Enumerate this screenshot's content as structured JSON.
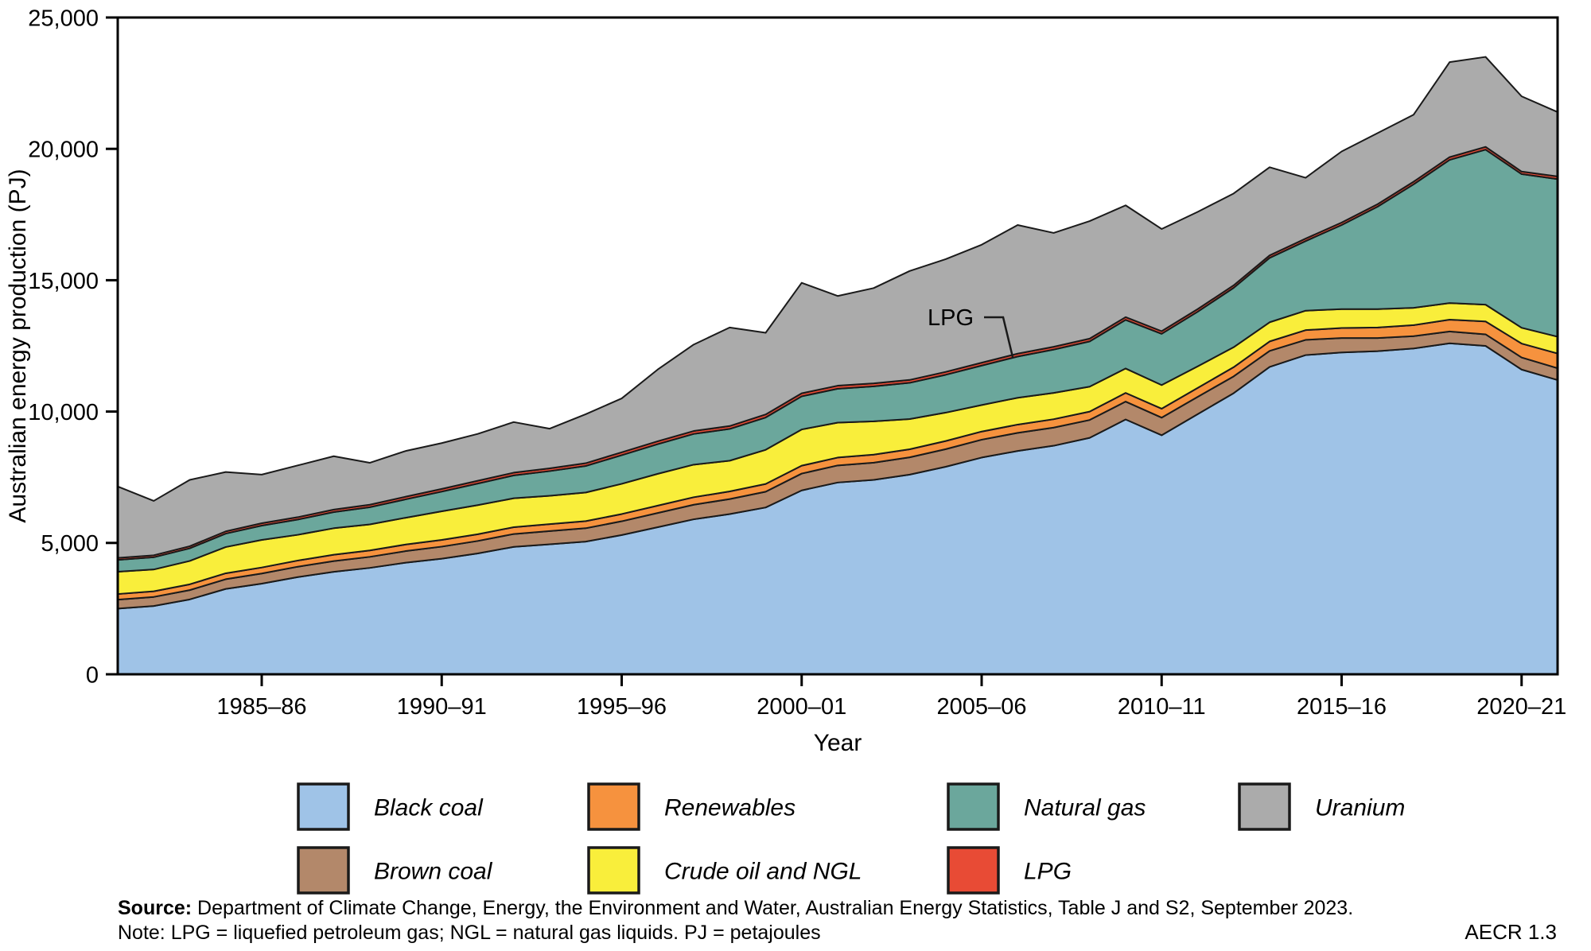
{
  "figure_label": "AECR 1.3",
  "source": {
    "label": "Source:",
    "text": " Department of Climate Change, Energy, the Environment and Water, Australian Energy Statistics, Table J and S2, September 2023."
  },
  "note": "Note: LPG = liquefied petroleum gas; NGL = natural gas liquids.  PJ = petajoules",
  "annotation": {
    "label": "LPG"
  },
  "colors": {
    "outline": "#1a1a1a",
    "axis": "#000000",
    "black_coal": "#9fc3e7",
    "brown_coal": "#b3886a",
    "renewables": "#f6923e",
    "crude_oil_ngl": "#f9ee3b",
    "natural_gas": "#6ba79c",
    "lpg": "#e84b35",
    "uranium": "#ababab"
  },
  "chart_data": {
    "type": "area",
    "stacked": true,
    "title": "",
    "xlabel": "Year",
    "ylabel": "Australian energy production (PJ)",
    "ylim": [
      0,
      25000
    ],
    "grid": false,
    "legend_position": "bottom",
    "yticks": [
      0,
      5000,
      10000,
      15000,
      20000,
      25000
    ],
    "ytick_labels": [
      "0",
      "5,000",
      "10,000",
      "15,000",
      "20,000",
      "25,000"
    ],
    "categories": [
      "1981–82",
      "1982–83",
      "1983–84",
      "1984–85",
      "1985–86",
      "1986–87",
      "1987–88",
      "1988–89",
      "1989–90",
      "1990–91",
      "1991–92",
      "1992–93",
      "1993–94",
      "1994–95",
      "1995–96",
      "1996–97",
      "1997–98",
      "1998–99",
      "1999–00",
      "2000–01",
      "2001–02",
      "2002–03",
      "2003–04",
      "2004–05",
      "2005–06",
      "2006–07",
      "2007–08",
      "2008–09",
      "2009–10",
      "2010–11",
      "2011–12",
      "2012–13",
      "2013–14",
      "2014–15",
      "2015–16",
      "2016–17",
      "2017–18",
      "2018–19",
      "2019–20",
      "2020–21",
      "2021–22"
    ],
    "xtick_indices": [
      4,
      9,
      14,
      19,
      24,
      29,
      34,
      39
    ],
    "xtick_labels": [
      "1985–86",
      "1990–91",
      "1995–96",
      "2000–01",
      "2005–06",
      "2010–11",
      "2015–16",
      "2020–21"
    ],
    "series": [
      {
        "name": "Black coal",
        "color_key": "black_coal",
        "values": [
          2500,
          2600,
          2850,
          3250,
          3450,
          3700,
          3900,
          4050,
          4250,
          4400,
          4600,
          4850,
          4950,
          5050,
          5300,
          5600,
          5900,
          6100,
          6350,
          7000,
          7300,
          7400,
          7600,
          7900,
          8250,
          8500,
          8700,
          9000,
          9700,
          9100,
          9900,
          10700,
          11700,
          12150,
          12250,
          12300,
          12400,
          12600,
          12500,
          11600,
          11200
        ]
      },
      {
        "name": "Brown coal",
        "color_key": "brown_coal",
        "values": [
          340,
          345,
          355,
          370,
          385,
          395,
          410,
          420,
          440,
          460,
          475,
          490,
          500,
          510,
          525,
          540,
          555,
          570,
          600,
          640,
          650,
          655,
          660,
          670,
          680,
          690,
          690,
          680,
          680,
          670,
          660,
          640,
          610,
          580,
          550,
          500,
          470,
          450,
          440,
          460,
          450
        ]
      },
      {
        "name": "Renewables",
        "color_key": "renewables",
        "values": [
          215,
          215,
          220,
          225,
          230,
          235,
          240,
          245,
          250,
          255,
          255,
          260,
          265,
          270,
          275,
          280,
          285,
          290,
          295,
          300,
          300,
          305,
          305,
          310,
          310,
          315,
          320,
          320,
          330,
          340,
          340,
          350,
          360,
          370,
          380,
          400,
          420,
          450,
          490,
          530,
          560
        ]
      },
      {
        "name": "Crude oil and NGL",
        "color_key": "crude_oil_ngl",
        "values": [
          850,
          830,
          890,
          1000,
          1050,
          980,
          1010,
          990,
          1020,
          1090,
          1110,
          1100,
          1080,
          1090,
          1150,
          1210,
          1240,
          1170,
          1300,
          1380,
          1330,
          1270,
          1150,
          1080,
          1010,
          1020,
          1000,
          950,
          930,
          900,
          820,
          760,
          730,
          740,
          720,
          700,
          660,
          630,
          640,
          600,
          640
        ]
      },
      {
        "name": "Natural gas",
        "color_key": "natural_gas",
        "values": [
          450,
          465,
          480,
          510,
          545,
          580,
          615,
          655,
          700,
          750,
          820,
          870,
          940,
          1010,
          1090,
          1130,
          1170,
          1210,
          1230,
          1260,
          1290,
          1330,
          1380,
          1440,
          1500,
          1570,
          1650,
          1720,
          1850,
          1950,
          2080,
          2260,
          2450,
          2650,
          3200,
          3900,
          4700,
          5450,
          5900,
          5850,
          6000
        ]
      },
      {
        "name": "LPG",
        "color_key": "lpg",
        "values": [
          75,
          75,
          80,
          85,
          90,
          90,
          95,
          95,
          100,
          100,
          105,
          105,
          105,
          105,
          110,
          110,
          110,
          110,
          115,
          115,
          115,
          115,
          110,
          110,
          110,
          110,
          105,
          105,
          105,
          100,
          100,
          95,
          95,
          95,
          95,
          95,
          100,
          105,
          105,
          95,
          100
        ]
      },
      {
        "name": "Uranium",
        "color_key": "uranium",
        "values": [
          2720,
          2070,
          2525,
          2260,
          1850,
          1970,
          2030,
          1595,
          1740,
          1745,
          1785,
          1925,
          1510,
          1865,
          2050,
          2730,
          3290,
          3750,
          3110,
          4205,
          3415,
          3625,
          4145,
          4290,
          4490,
          4895,
          4335,
          4475,
          4255,
          3890,
          3700,
          3495,
          3355,
          2315,
          2705,
          2705,
          2550,
          3615,
          3425,
          2865,
          2450
        ]
      }
    ],
    "legend_rows": [
      [
        "Black coal",
        "Renewables",
        "Natural gas",
        "Uranium"
      ],
      [
        "Brown coal",
        "Crude oil and NGL",
        "LPG"
      ]
    ]
  }
}
